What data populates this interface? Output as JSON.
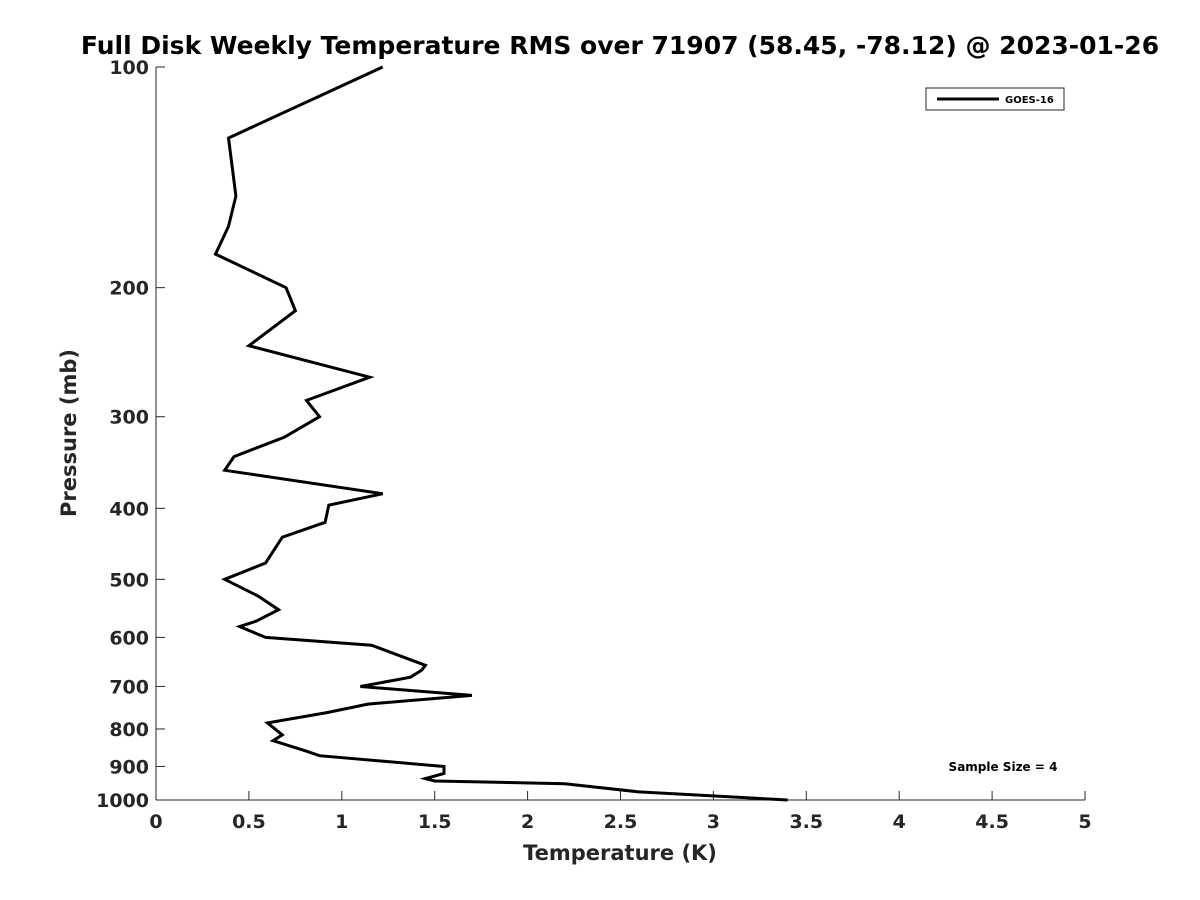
{
  "chart_data": {
    "type": "line",
    "title": "Full Disk Weekly Temperature RMS over 71907 (58.45, -78.12) @ 2023-01-26",
    "xlabel": "Temperature (K)",
    "ylabel": "Pressure (mb)",
    "xlim": [
      0,
      5
    ],
    "ylim": [
      100,
      1000
    ],
    "yscale": "log",
    "y_reversed": true,
    "xticks": [
      0,
      0.5,
      1,
      1.5,
      2,
      2.5,
      3,
      3.5,
      4,
      4.5,
      5
    ],
    "xtick_labels": [
      "0",
      "0.5",
      "1",
      "1.5",
      "2",
      "2.5",
      "3",
      "3.5",
      "4",
      "4.5",
      "5"
    ],
    "yticks": [
      100,
      200,
      300,
      400,
      500,
      600,
      700,
      800,
      900,
      1000
    ],
    "ytick_labels": [
      "100",
      "200",
      "300",
      "400",
      "500",
      "600",
      "700",
      "800",
      "900",
      "1000"
    ],
    "grid": false,
    "legend_position": "top-right",
    "annotation": "Sample Size = 4",
    "series": [
      {
        "name": "GOES-16",
        "color": "#000000",
        "points": [
          [
            1.22,
            100
          ],
          [
            0.39,
            125
          ],
          [
            0.43,
            150
          ],
          [
            0.39,
            165
          ],
          [
            0.32,
            180
          ],
          [
            0.7,
            200
          ],
          [
            0.75,
            215
          ],
          [
            0.5,
            240
          ],
          [
            1.15,
            265
          ],
          [
            0.81,
            285
          ],
          [
            0.88,
            300
          ],
          [
            0.69,
            320
          ],
          [
            0.42,
            340
          ],
          [
            0.37,
            355
          ],
          [
            1.22,
            382
          ],
          [
            0.93,
            396
          ],
          [
            0.91,
            418
          ],
          [
            0.68,
            438
          ],
          [
            0.59,
            475
          ],
          [
            0.37,
            500
          ],
          [
            0.55,
            527
          ],
          [
            0.66,
            550
          ],
          [
            0.54,
            570
          ],
          [
            0.45,
            580
          ],
          [
            0.59,
            600
          ],
          [
            1.16,
            615
          ],
          [
            1.45,
            655
          ],
          [
            1.43,
            665
          ],
          [
            1.37,
            680
          ],
          [
            1.1,
            700
          ],
          [
            1.7,
            720
          ],
          [
            1.14,
            740
          ],
          [
            0.92,
            760
          ],
          [
            0.6,
            785
          ],
          [
            0.68,
            815
          ],
          [
            0.63,
            830
          ],
          [
            0.81,
            858
          ],
          [
            0.88,
            870
          ],
          [
            1.55,
            900
          ],
          [
            1.55,
            920
          ],
          [
            1.45,
            935
          ],
          [
            1.5,
            942
          ],
          [
            2.2,
            950
          ],
          [
            2.6,
            975
          ],
          [
            3.4,
            1000
          ]
        ]
      }
    ]
  }
}
